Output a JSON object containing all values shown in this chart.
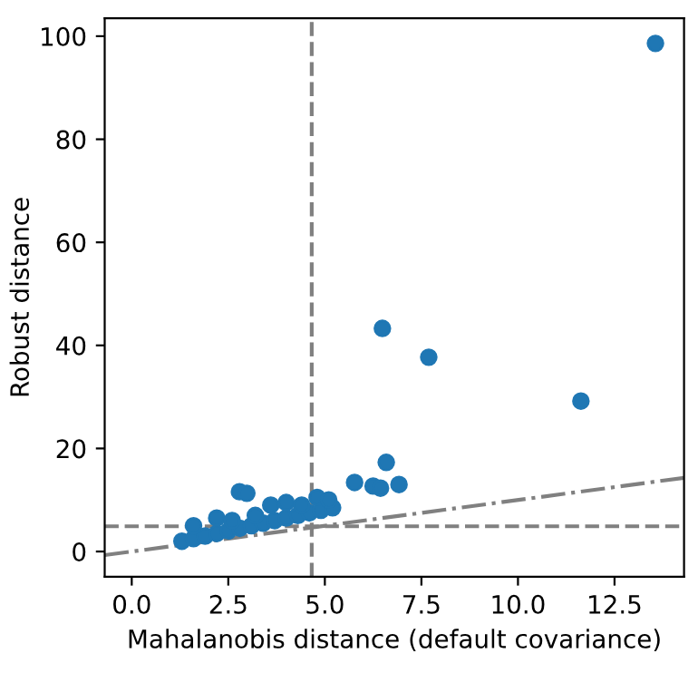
{
  "chart_data": {
    "type": "scatter",
    "xlabel": "Mahalanobis distance (default covariance)",
    "ylabel": "Robust distance",
    "xlim": [
      -0.7,
      14.3
    ],
    "ylim": [
      -4.9,
      103.5
    ],
    "xticks": [
      {
        "value": 0,
        "label": "0.0"
      },
      2.5,
      {
        "value": 5,
        "label": "5.0"
      },
      7.5,
      {
        "value": 10,
        "label": "10.0"
      },
      12.5
    ],
    "yticks": [
      0,
      20,
      40,
      60,
      80,
      100
    ],
    "grid": false,
    "legend": false,
    "series": [
      {
        "color": "#1f77b4",
        "marker": "circle",
        "x": [
          1.3,
          1.6,
          1.9,
          2.2,
          2.5,
          2.8,
          3.1,
          3.4,
          3.7,
          4.0,
          4.3,
          4.6,
          4.9,
          5.2,
          1.6,
          2.2,
          2.6,
          3.2,
          3.6,
          4.0,
          4.4,
          4.8,
          5.1,
          2.79,
          2.98,
          5.77,
          6.25,
          6.44,
          6.92,
          6.59,
          6.49,
          7.69,
          11.63,
          13.56
        ],
        "values": [
          2,
          2.5,
          3,
          3.5,
          4,
          4.5,
          5,
          5.5,
          6,
          6.5,
          7,
          7.5,
          8,
          8.5,
          5,
          6.5,
          6,
          7,
          9,
          9.5,
          9,
          10.5,
          10,
          11.6,
          11.3,
          13.4,
          12.7,
          12.3,
          13,
          17.3,
          43.3,
          37.7,
          29.2,
          98.6
        ]
      },
      {
        "type": "line",
        "color": "#808080",
        "marker": "none",
        "line_style": "dashdot",
        "x": [
          -0.7,
          14.3
        ],
        "values": [
          -0.7,
          14.3
        ]
      }
    ],
    "ref_lines": [
      {
        "axis": "x",
        "value": 4.66,
        "color": "#808080",
        "line_style": "dashed"
      },
      {
        "axis": "y",
        "value": 4.9,
        "color": "#808080",
        "line_style": "dashed"
      }
    ]
  }
}
